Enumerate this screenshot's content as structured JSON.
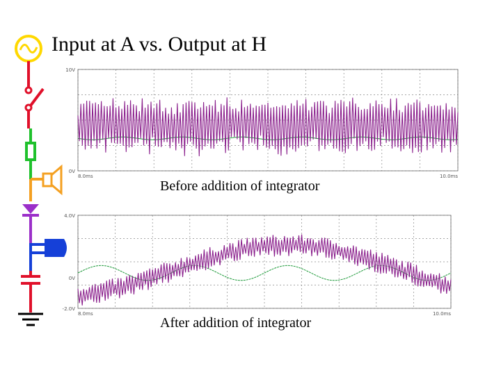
{
  "title": "Input at A vs. Output at H",
  "plots": [
    {
      "caption": "Before addition of integrator",
      "y_labels": [
        "10V",
        "0V"
      ],
      "x_labels": [
        "8.0ms",
        "10.0ms"
      ]
    },
    {
      "caption": "After addition of integrator",
      "y_labels": [
        "4.0V",
        "0V",
        "-2.0V"
      ],
      "x_labels": [
        "8.0ms",
        "10.0ms"
      ]
    }
  ]
}
